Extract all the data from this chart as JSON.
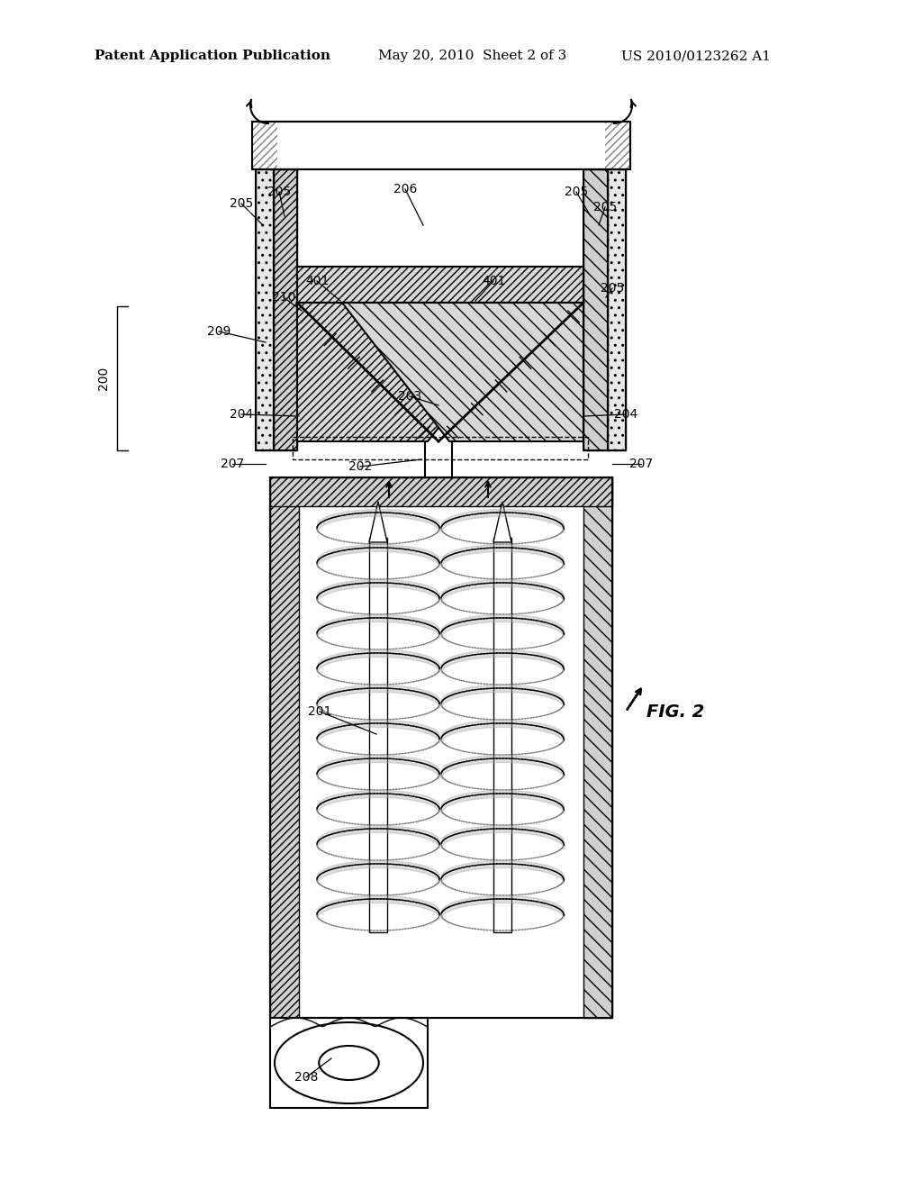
{
  "title_left": "Patent Application Publication",
  "title_mid": "May 20, 2010  Sheet 2 of 3",
  "title_right": "US 2010/0123262 A1",
  "fig_label": "FIG. 2",
  "bg_color": "#ffffff",
  "line_color": "#000000"
}
